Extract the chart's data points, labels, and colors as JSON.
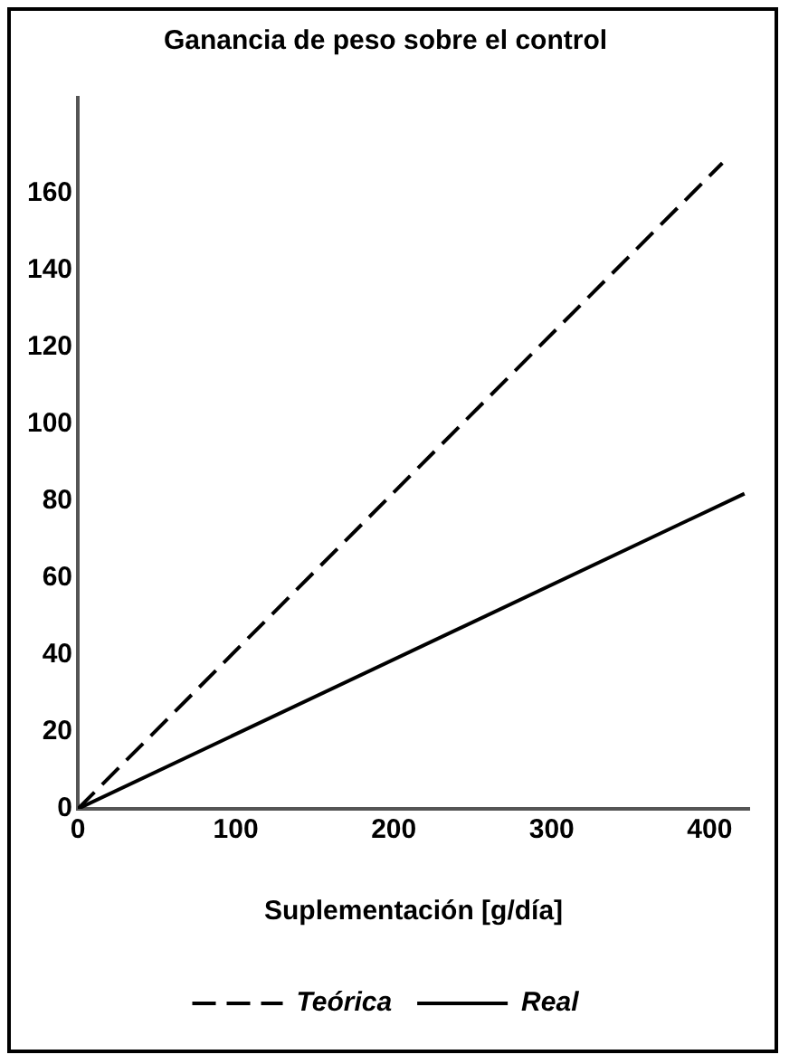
{
  "chart_data": {
    "type": "line",
    "title": "Ganancia de peso sobre el control",
    "xlabel": "Suplementación [g/día]",
    "xlim": [
      0,
      425
    ],
    "xticks": [
      0,
      100,
      200,
      300,
      400
    ],
    "ylim": [
      0,
      185
    ],
    "yticks": [
      0,
      20,
      40,
      60,
      80,
      100,
      120,
      140,
      160
    ],
    "grid": false,
    "legend": "bottom",
    "marker": "none",
    "series": [
      {
        "name": "Teórica",
        "color": "#000000",
        "line_style": "dashed",
        "x": [
          0,
          408
        ],
        "values": [
          0,
          168
        ]
      },
      {
        "name": "Real",
        "color": "#000000",
        "line_style": "solid",
        "x": [
          0,
          422
        ],
        "values": [
          0,
          82
        ]
      }
    ]
  }
}
